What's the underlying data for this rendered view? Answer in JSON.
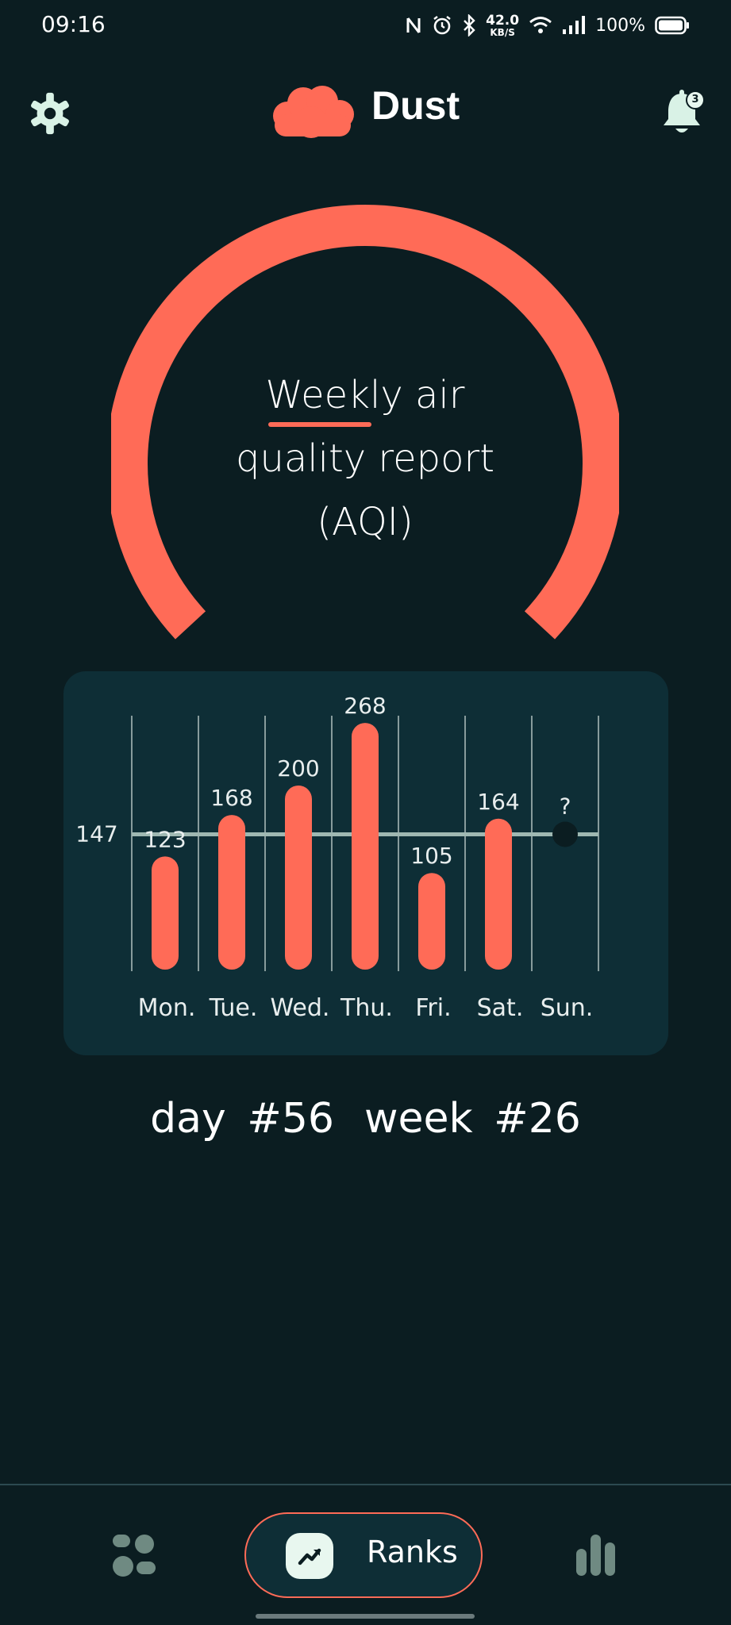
{
  "status_bar": {
    "time": "09:16",
    "net_speed_value": "42.0",
    "net_speed_unit": "KB/S",
    "battery": "100%"
  },
  "header": {
    "app_name": "Dust",
    "notification_count": "3"
  },
  "gauge": {
    "title_line1": "Weekly air",
    "title_line2": "quality report",
    "title_line3": "(AQI)",
    "accent_color": "#ff6b57"
  },
  "chart_data": {
    "type": "bar",
    "categories": [
      "Mon.",
      "Tue.",
      "Wed.",
      "Thu.",
      "Fri.",
      "Sat.",
      "Sun."
    ],
    "values": [
      123,
      168,
      200,
      268,
      105,
      164,
      null
    ],
    "value_labels": [
      "123",
      "168",
      "200",
      "268",
      "105",
      "164",
      "?"
    ],
    "average": 147,
    "average_label": "147",
    "grid": true,
    "bar_color": "#ff6b57",
    "average_line_color": "#9fb8b2"
  },
  "footer": {
    "day": "day #56",
    "week": "week #26"
  },
  "bottom_nav": {
    "active_label": "Ranks"
  }
}
